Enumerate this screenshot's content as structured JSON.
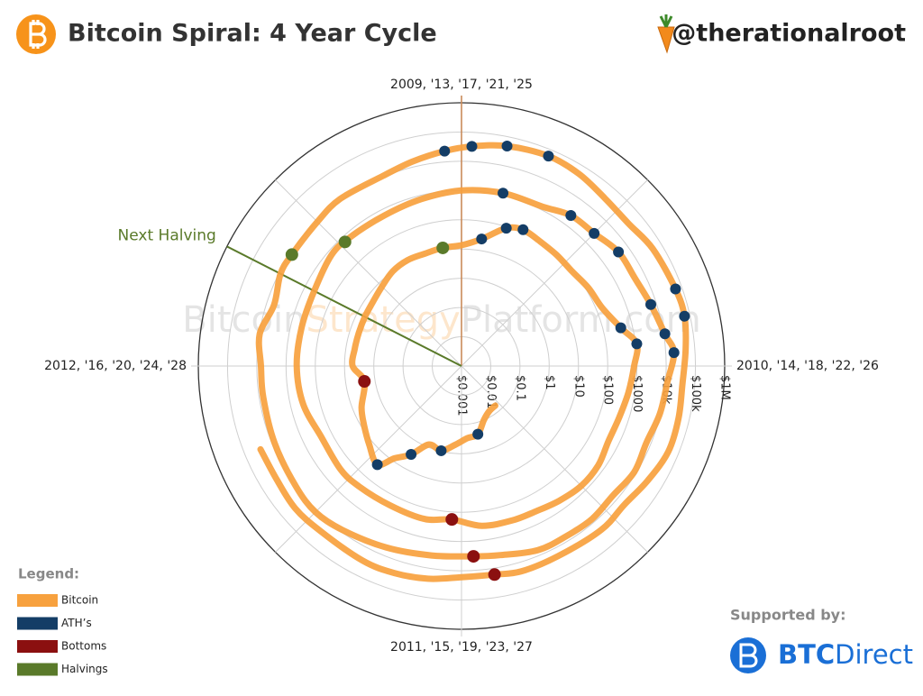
{
  "header": {
    "title": "Bitcoin Spiral: 4 Year Cycle",
    "handle": "@therationalroot"
  },
  "sponsor": {
    "label": "Supported by:",
    "brand_bold": "BTC",
    "brand_rest": "Direct"
  },
  "watermark": {
    "part1": "Bitcoin",
    "part2": "Strategy",
    "part3": "Platform.com"
  },
  "chart_data": {
    "type": "polar-spiral",
    "rscale": "log",
    "rlim": [
      0.001,
      1000000
    ],
    "rticks": [
      {
        "value": 0.001,
        "label": "$0.001"
      },
      {
        "value": 0.01,
        "label": "$0.01"
      },
      {
        "value": 0.1,
        "label": "$0.1"
      },
      {
        "value": 1,
        "label": "$1"
      },
      {
        "value": 10,
        "label": "$10"
      },
      {
        "value": 100,
        "label": "$100"
      },
      {
        "value": 1000,
        "label": "$1000"
      },
      {
        "value": 10000,
        "label": "$10k"
      },
      {
        "value": 100000,
        "label": "$100k"
      },
      {
        "value": 1000000,
        "label": "$1M"
      }
    ],
    "angle_ticks": [
      {
        "value": 2009,
        "label": "2009, '13, '17, '21, '25"
      },
      {
        "value": 2010,
        "label": "2010, '14, '18, '22, '26"
      },
      {
        "value": 2011,
        "label": "2011, '15, '19, '23, '27"
      },
      {
        "value": 2012,
        "label": "2012, '16, '20, '24, '28"
      }
    ],
    "grid": true,
    "legend_title": "Legend:",
    "legend_position": "lower-left",
    "annotation": {
      "text": "Next Halving",
      "x": 2024.3,
      "color": "#5a7a2a"
    },
    "series": [
      {
        "name": "Bitcoin",
        "color": "#f7a13e",
        "mode": "line",
        "x": [
          2010.55,
          2010.65,
          2010.75,
          2010.85,
          2010.95,
          2011.05,
          2011.15,
          2011.25,
          2011.33,
          2011.4,
          2011.45,
          2011.55,
          2011.65,
          2011.75,
          2011.9,
          2012.0,
          2012.1,
          2012.2,
          2012.3,
          2012.4,
          2012.5,
          2012.6,
          2012.7,
          2012.8,
          2012.9,
          2013.0,
          2013.1,
          2013.2,
          2013.27,
          2013.35,
          2013.45,
          2013.55,
          2013.65,
          2013.75,
          2013.85,
          2013.92,
          2014.0,
          2014.1,
          2014.2,
          2014.3,
          2014.4,
          2014.5,
          2014.6,
          2014.7,
          2014.8,
          2014.92,
          2015.04,
          2015.15,
          2015.3,
          2015.45,
          2015.55,
          2015.7,
          2015.85,
          2016.0,
          2016.15,
          2016.3,
          2016.45,
          2016.55,
          2016.7,
          2016.85,
          2017.0,
          2017.15,
          2017.3,
          2017.4,
          2017.5,
          2017.6,
          2017.7,
          2017.8,
          2017.9,
          2017.96,
          2018.05,
          2018.15,
          2018.25,
          2018.35,
          2018.45,
          2018.55,
          2018.65,
          2018.75,
          2018.87,
          2018.96,
          2019.1,
          2019.25,
          2019.4,
          2019.5,
          2019.6,
          2019.75,
          2019.9,
          2020.0,
          2020.1,
          2020.2,
          2020.3,
          2020.37,
          2020.5,
          2020.6,
          2020.75,
          2020.85,
          2020.95,
          2021.03,
          2021.13,
          2021.25,
          2021.35,
          2021.45,
          2021.55,
          2021.65,
          2021.78,
          2021.86,
          2021.95,
          2022.05,
          2022.15,
          2022.25,
          2022.35,
          2022.45,
          2022.55,
          2022.7,
          2022.82,
          2022.9,
          2023.0,
          2023.1,
          2023.2,
          2023.3,
          2023.45,
          2023.55,
          2023.65,
          2023.75
        ],
        "values": [
          0.06,
          0.065,
          0.1,
          0.25,
          0.3,
          0.5,
          0.95,
          0.8,
          3,
          8,
          27,
          14,
          8,
          5,
          2.3,
          5.3,
          5,
          4.9,
          5.1,
          5.5,
          7,
          10,
          11.5,
          11,
          12.3,
          13.5,
          25,
          90,
          130,
          110,
          100,
          95,
          125,
          160,
          400,
          1100,
          800,
          600,
          470,
          440,
          600,
          620,
          490,
          380,
          360,
          320,
          180,
          240,
          225,
          255,
          275,
          235,
          370,
          430,
          420,
          450,
          700,
          660,
          610,
          740,
          1000,
          1200,
          1300,
          2300,
          2600,
          4300,
          4400,
          6400,
          11000,
          19000,
          11500,
          9500,
          7000,
          8500,
          6500,
          7500,
          6800,
          6500,
          4000,
          3300,
          3600,
          5200,
          8500,
          11500,
          10000,
          8200,
          7300,
          7200,
          9700,
          5500,
          8800,
          8700,
          9300,
          11500,
          10800,
          15500,
          23500,
          33000,
          48000,
          59000,
          50000,
          35000,
          32000,
          47000,
          60000,
          65000,
          49000,
          38000,
          43000,
          45000,
          30000,
          20500,
          23000,
          19500,
          20500,
          16500,
          16600,
          23000,
          27500,
          29000,
          26500,
          30500,
          26000,
          27500
        ]
      },
      {
        "name": "ATH’s",
        "color": "#143d66",
        "mode": "markers",
        "x": [
          2010.85,
          2011.15,
          2011.33,
          2011.45,
          2013.1,
          2013.2,
          2013.27,
          2013.85,
          2013.92,
          2017.15,
          2017.4,
          2017.5,
          2017.6,
          2017.8,
          2017.9,
          2017.96,
          2020.95,
          2021.03,
          2021.13,
          2021.25,
          2021.78,
          2021.86
        ],
        "values": [
          0.25,
          0.95,
          3,
          27,
          25,
          90,
          130,
          400,
          1100,
          1200,
          2300,
          2600,
          4300,
          6400,
          11000,
          19000,
          23500,
          33000,
          48000,
          59000,
          60000,
          65000
        ]
      },
      {
        "name": "Bottoms",
        "color": "#8b1010",
        "mode": "markers",
        "x": [
          2011.9,
          2015.04,
          2018.96,
          2022.9
        ],
        "values": [
          2.3,
          180,
          3300,
          16500
        ]
      },
      {
        "name": "Halvings",
        "color": "#5a7a2a",
        "mode": "markers",
        "x": [
          2012.9,
          2016.52,
          2020.37
        ],
        "values": [
          12.3,
          660,
          8700
        ]
      }
    ]
  }
}
